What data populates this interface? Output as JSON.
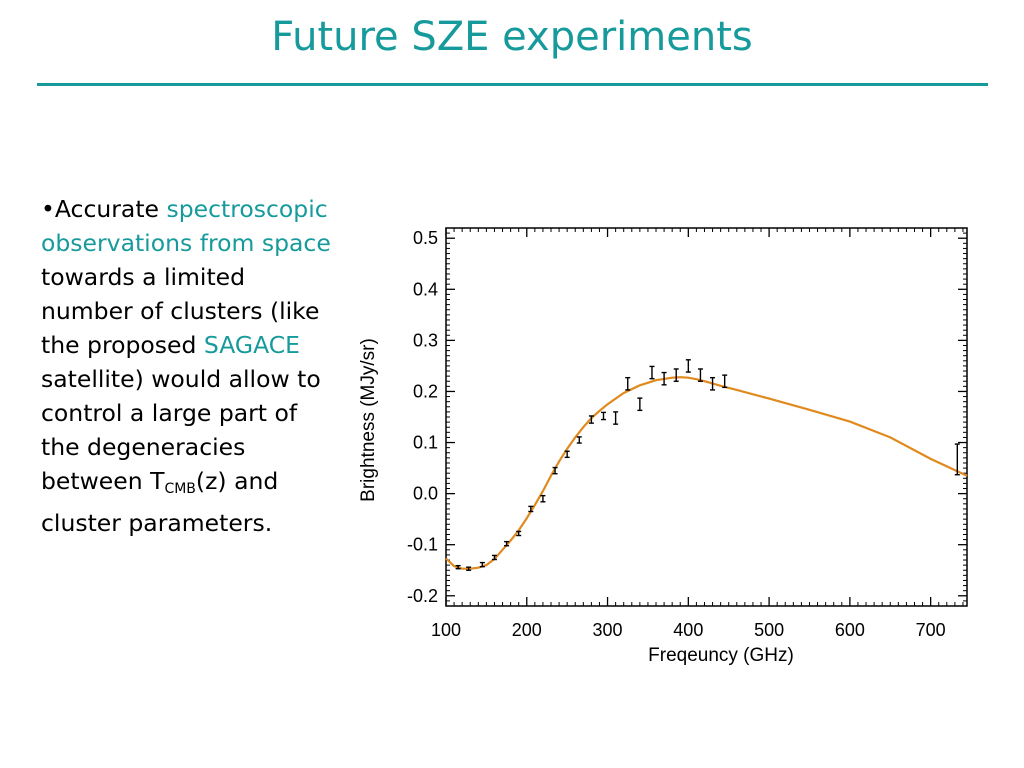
{
  "slide": {
    "title": "Future SZE experiments",
    "colors": {
      "accent": "#169a9c",
      "text": "#000000",
      "curve": "#e08a1e"
    },
    "bullet": {
      "marker": "•",
      "p1": "Accurate ",
      "p2": "spectroscopic observations from space",
      "p3": " towards a limited number of clusters (like the proposed ",
      "p4": "SAGACE",
      "p5": " satellite) would allow to control a large part of the degeneracies between T",
      "p6": "CMB",
      "p7": "(z) and cluster parameters."
    }
  },
  "chart_data": {
    "type": "scatter",
    "xlabel": "Freqeuncy (GHz)",
    "ylabel": "Brightness (MJy/sr)",
    "xlim": [
      100,
      745
    ],
    "ylim": [
      -0.22,
      0.52
    ],
    "xticks": [
      100,
      200,
      300,
      400,
      500,
      600,
      700
    ],
    "xtick_labels": [
      "100",
      "200",
      "300",
      "400",
      "500",
      "600",
      "700"
    ],
    "yticks": [
      -0.2,
      -0.1,
      0.0,
      0.1,
      0.2,
      0.3,
      0.4,
      0.5
    ],
    "ytick_labels": [
      "-0.2",
      "-0.1",
      "0.0",
      "0.1",
      "0.2",
      "0.3",
      "0.4",
      "0.5"
    ],
    "grid": false,
    "model_curve": {
      "x": [
        100,
        110,
        120,
        130,
        140,
        150,
        160,
        170,
        180,
        190,
        200,
        210,
        220,
        230,
        240,
        250,
        260,
        270,
        280,
        290,
        300,
        320,
        340,
        360,
        380,
        390,
        400,
        410,
        420,
        440,
        460,
        500,
        550,
        600,
        650,
        700,
        745
      ],
      "y": [
        -0.127,
        -0.142,
        -0.147,
        -0.147,
        -0.145,
        -0.14,
        -0.128,
        -0.11,
        -0.092,
        -0.072,
        -0.048,
        -0.022,
        0.005,
        0.035,
        0.063,
        0.088,
        0.11,
        0.13,
        0.148,
        0.162,
        0.175,
        0.197,
        0.212,
        0.222,
        0.227,
        0.228,
        0.227,
        0.224,
        0.22,
        0.211,
        0.203,
        0.186,
        0.164,
        0.141,
        0.11,
        0.068,
        0.035
      ]
    },
    "points": [
      {
        "x": 115,
        "y": -0.144,
        "err": 0.003
      },
      {
        "x": 128,
        "y": -0.147,
        "err": 0.003
      },
      {
        "x": 145,
        "y": -0.139,
        "err": 0.004
      },
      {
        "x": 160,
        "y": -0.125,
        "err": 0.004
      },
      {
        "x": 175,
        "y": -0.098,
        "err": 0.004
      },
      {
        "x": 190,
        "y": -0.078,
        "err": 0.004
      },
      {
        "x": 205,
        "y": -0.03,
        "err": 0.005
      },
      {
        "x": 220,
        "y": -0.01,
        "err": 0.006
      },
      {
        "x": 235,
        "y": 0.045,
        "err": 0.006
      },
      {
        "x": 250,
        "y": 0.077,
        "err": 0.006
      },
      {
        "x": 265,
        "y": 0.105,
        "err": 0.006
      },
      {
        "x": 280,
        "y": 0.145,
        "err": 0.007
      },
      {
        "x": 295,
        "y": 0.152,
        "err": 0.007
      },
      {
        "x": 310,
        "y": 0.148,
        "err": 0.012
      },
      {
        "x": 325,
        "y": 0.215,
        "err": 0.012
      },
      {
        "x": 340,
        "y": 0.175,
        "err": 0.012
      },
      {
        "x": 355,
        "y": 0.237,
        "err": 0.012
      },
      {
        "x": 370,
        "y": 0.225,
        "err": 0.012
      },
      {
        "x": 385,
        "y": 0.232,
        "err": 0.012
      },
      {
        "x": 400,
        "y": 0.25,
        "err": 0.012
      },
      {
        "x": 415,
        "y": 0.232,
        "err": 0.012
      },
      {
        "x": 430,
        "y": 0.215,
        "err": 0.012
      },
      {
        "x": 445,
        "y": 0.22,
        "err": 0.012
      },
      {
        "x": 733,
        "y": 0.067,
        "err": 0.03
      }
    ]
  }
}
